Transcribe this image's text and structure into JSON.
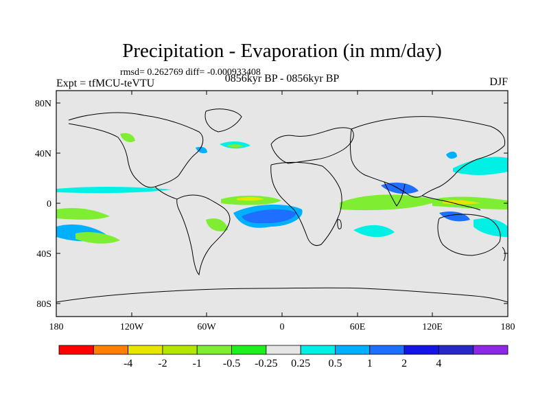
{
  "title": "Precipitation - Evaporation (in mm/day)",
  "stats_line": "rmsd= 0.262769 diff= -0.000933408",
  "expt_label": "Expt = tfMCU-teVTU",
  "period_label": "0856kyr BP - 0856kyr BP",
  "season_label": "DJF",
  "map": {
    "lat_ticks": [
      "80N",
      "40N",
      "0",
      "40S",
      "80S"
    ],
    "lon_ticks": [
      "180",
      "120W",
      "60W",
      "0",
      "60E",
      "120E",
      "180"
    ]
  },
  "colorbar": {
    "colors": [
      "#ff0000",
      "#ff7f00",
      "#e6e600",
      "#b4e600",
      "#7fee33",
      "#1ef01e",
      "#e6e6e6",
      "#00f0e6",
      "#00b0ff",
      "#1e6eff",
      "#1414e6",
      "#2828c8",
      "#8c28e6"
    ],
    "labels": [
      "-4",
      "-2",
      "-1",
      "-0.5",
      "-0.25",
      "0.25",
      "0.5",
      "1",
      "2",
      "4"
    ]
  },
  "colors": {
    "ocean_bg": "#e6e6e6",
    "coast": "#000000"
  }
}
